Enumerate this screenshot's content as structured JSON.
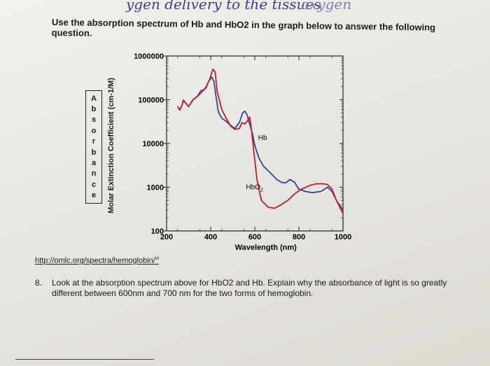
{
  "handwriting": {
    "left": "ygen delivery to the tissues",
    "right": "oxygen"
  },
  "intro": {
    "line1": "Use the absorption spectrum of Hb and HbO2 in the graph below to answer the following",
    "line2": "question."
  },
  "absorbance_box_letters": [
    "A",
    "b",
    "s",
    "o",
    "r",
    "b",
    "a",
    "n",
    "c",
    "e"
  ],
  "chart_data": {
    "type": "line",
    "xlabel": "Wavelength (nm)",
    "ylabel": "Molar Extinction Coefficient (cm-1/M)",
    "x_ticks": [
      "200",
      "400",
      "600",
      "800",
      "1000"
    ],
    "y_ticks": [
      "100",
      "1000",
      "10000",
      "100000",
      "1000000"
    ],
    "xlim": [
      200,
      1000
    ],
    "ylim": [
      100,
      1000000
    ],
    "y_scale": "log",
    "grid": false,
    "series": [
      {
        "name": "Hb",
        "color": "#3a3f9a",
        "x": [
          250,
          260,
          270,
          276,
          280,
          300,
          320,
          340,
          355,
          370,
          380,
          390,
          405,
          415,
          425,
          435,
          450,
          470,
          490,
          510,
          530,
          545,
          555,
          565,
          575,
          590,
          600,
          620,
          640,
          660,
          680,
          700,
          720,
          740,
          760,
          780,
          800,
          830,
          860,
          900,
          930,
          950,
          970,
          1000
        ],
        "y": [
          70000,
          58000,
          75000,
          98000,
          92000,
          70000,
          100000,
          120000,
          160000,
          170000,
          190000,
          260000,
          330000,
          260000,
          110000,
          52000,
          38000,
          32000,
          26000,
          22000,
          30000,
          50000,
          55000,
          45000,
          30000,
          16000,
          9000,
          4500,
          3000,
          2400,
          1900,
          1500,
          1300,
          1250,
          1500,
          1300,
          900,
          800,
          750,
          800,
          1000,
          800,
          500,
          300
        ]
      },
      {
        "name": "HbO2",
        "color": "#b8202b",
        "x": [
          250,
          260,
          270,
          276,
          280,
          300,
          320,
          340,
          360,
          380,
          395,
          410,
          420,
          430,
          450,
          470,
          490,
          510,
          530,
          542,
          555,
          565,
          577,
          585,
          595,
          610,
          630,
          660,
          690,
          720,
          750,
          780,
          810,
          850,
          880,
          910,
          930,
          950,
          970,
          1000
        ],
        "y": [
          70000,
          58000,
          75000,
          98000,
          92000,
          70000,
          100000,
          120000,
          150000,
          200000,
          290000,
          500000,
          430000,
          150000,
          60000,
          38000,
          25000,
          21000,
          22000,
          30000,
          28000,
          32000,
          40000,
          20000,
          7000,
          1500,
          500,
          350,
          330,
          400,
          500,
          700,
          900,
          1100,
          1200,
          1200,
          1150,
          900,
          500,
          250
        ]
      }
    ],
    "annotations": [
      {
        "text": "Hb",
        "x": 615,
        "y": 12000
      },
      {
        "text": "HbO2",
        "x": 560,
        "y": 900
      }
    ]
  },
  "source_link": "http://omlc.org/spectra/hemoglobin/",
  "source_link_sup": "vi",
  "question": {
    "number": "8.",
    "text": "Look at the absorption spectrum above for HbO2 and Hb.  Explain why the absorbance of light is so greatly different between 600nm and 700 nm for the two forms of hemoglobin."
  }
}
